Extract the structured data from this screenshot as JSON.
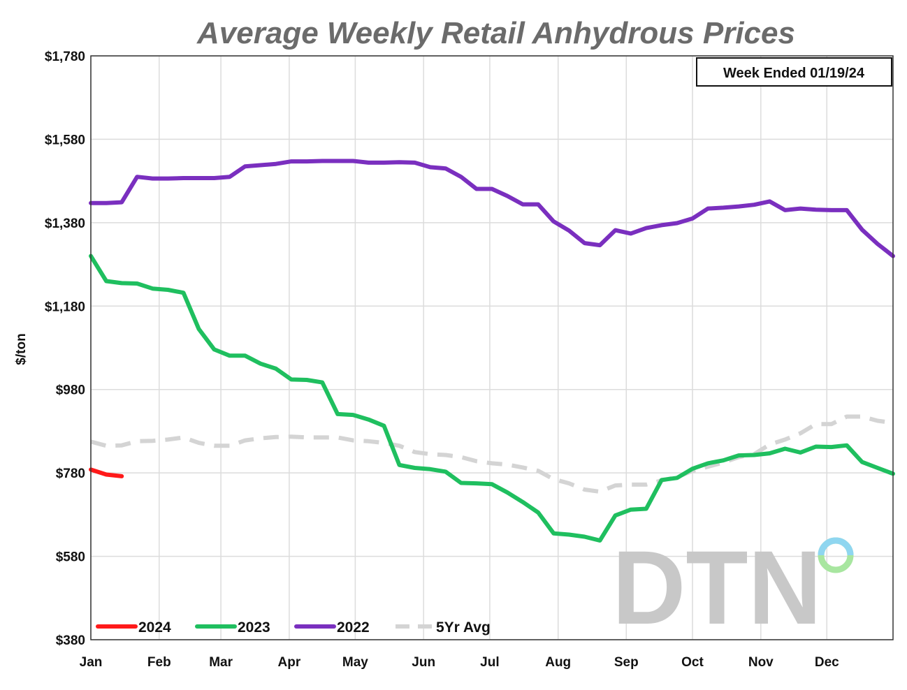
{
  "chart_data": {
    "type": "line",
    "title": "Average Weekly Retail Anhydrous Prices",
    "ylabel": "$/ton",
    "xlabel": "",
    "ylim": [
      380,
      1780
    ],
    "yticks": [
      380,
      580,
      780,
      980,
      1180,
      1380,
      1580,
      1780
    ],
    "ytick_labels": [
      "$380",
      "$580",
      "$780",
      "$980",
      "$1,180",
      "$1,380",
      "$1,580",
      "$1,780"
    ],
    "xlim": [
      0,
      52
    ],
    "month_positions": [
      0,
      4.43,
      8.43,
      12.86,
      17.14,
      21.57,
      25.86,
      30.29,
      34.71,
      39,
      43.43,
      47.71
    ],
    "month_labels": [
      "Jan",
      "Feb",
      "Mar",
      "Apr",
      "May",
      "Jun",
      "Jul",
      "Aug",
      "Sep",
      "Oct",
      "Nov",
      "Dec"
    ],
    "grid": true,
    "note": "Week Ended 01/19/24",
    "watermark": "DTN",
    "series": [
      {
        "name": "2024",
        "color": "#ff1a1a",
        "dash": "solid",
        "x": [
          0,
          1,
          2
        ],
        "values": [
          788,
          776,
          772
        ]
      },
      {
        "name": "2023",
        "color": "#1fbf5f",
        "dash": "solid",
        "x": [
          0,
          1,
          2,
          3,
          4,
          5,
          6,
          7,
          8,
          9,
          10,
          11,
          12,
          13,
          14,
          15,
          16,
          17,
          18,
          19,
          20,
          21,
          22,
          23,
          24,
          25,
          26,
          27,
          28,
          29,
          30,
          31,
          32,
          33,
          34,
          35,
          36,
          37,
          38,
          39,
          40,
          41,
          42,
          43,
          44,
          45,
          46,
          47,
          48,
          49,
          50,
          51,
          52
        ],
        "values": [
          1300,
          1240,
          1235,
          1234,
          1222,
          1219,
          1212,
          1125,
          1076,
          1061,
          1061,
          1042,
          1030,
          1004,
          1003,
          997,
          921,
          919,
          908,
          893,
          799,
          792,
          789,
          783,
          756,
          755,
          753,
          733,
          710,
          685,
          635,
          632,
          627,
          618,
          678,
          692,
          694,
          763,
          768,
          790,
          803,
          810,
          822,
          823,
          827,
          838,
          829,
          843,
          842,
          846,
          806,
          792,
          778
        ]
      },
      {
        "name": "2022",
        "color": "#7a2fbf",
        "dash": "solid",
        "x": [
          0,
          1,
          2,
          3,
          4,
          5,
          6,
          7,
          8,
          9,
          10,
          11,
          12,
          13,
          14,
          15,
          16,
          17,
          18,
          19,
          20,
          21,
          22,
          23,
          24,
          25,
          26,
          27,
          28,
          29,
          30,
          31,
          32,
          33,
          34,
          35,
          36,
          37,
          38,
          39,
          40,
          41,
          42,
          43,
          44,
          45,
          46,
          47,
          48,
          49,
          50,
          51,
          52
        ],
        "values": [
          1427,
          1427,
          1429,
          1490,
          1486,
          1486,
          1487,
          1487,
          1487,
          1490,
          1515,
          1518,
          1521,
          1527,
          1527,
          1528,
          1528,
          1528,
          1524,
          1524,
          1525,
          1524,
          1513,
          1510,
          1490,
          1461,
          1461,
          1444,
          1424,
          1424,
          1383,
          1361,
          1331,
          1326,
          1362,
          1354,
          1367,
          1374,
          1379,
          1390,
          1414,
          1416,
          1419,
          1423,
          1431,
          1410,
          1414,
          1411,
          1410,
          1410,
          1363,
          1329,
          1300
        ]
      },
      {
        "name": "5Yr Avg",
        "color": "#d4d4d4",
        "dash": "dashed",
        "x": [
          0,
          1,
          2,
          3,
          4,
          5,
          6,
          7,
          8,
          9,
          10,
          11,
          12,
          13,
          14,
          15,
          16,
          17,
          18,
          19,
          20,
          21,
          22,
          23,
          24,
          25,
          26,
          27,
          28,
          29,
          30,
          31,
          32,
          33,
          34,
          35,
          36,
          37,
          38,
          39,
          40,
          41,
          42,
          43,
          44,
          45,
          46,
          47,
          48,
          49,
          50,
          51,
          52
        ],
        "values": [
          855,
          845,
          846,
          856,
          857,
          860,
          865,
          852,
          845,
          845,
          858,
          863,
          866,
          867,
          865,
          865,
          865,
          858,
          856,
          852,
          845,
          830,
          825,
          823,
          818,
          808,
          803,
          800,
          793,
          785,
          765,
          755,
          740,
          735,
          750,
          752,
          752,
          762,
          770,
          785,
          795,
          805,
          818,
          825,
          848,
          860,
          875,
          897,
          897,
          915,
          915,
          905,
          900
        ]
      }
    ],
    "legend": [
      "2024",
      "2023",
      "2022",
      "5Yr Avg"
    ],
    "legend_position": "bottom-left"
  }
}
